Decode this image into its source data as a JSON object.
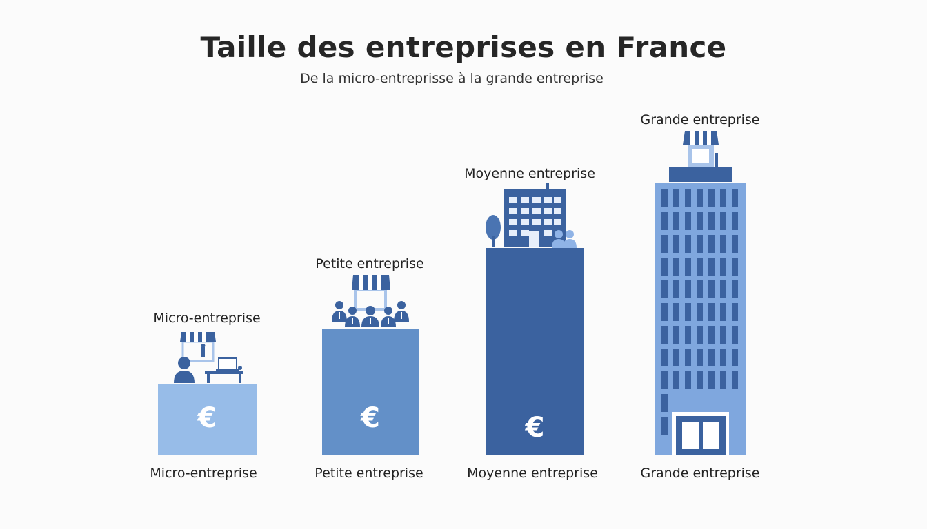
{
  "title": "Taille des entreprises en France",
  "subtitle": "De la micro-entreprisse à la grande entreprise",
  "colors": {
    "light_blue": "#97bce8",
    "mid_blue": "#6390c8",
    "dark_blue": "#3b629f",
    "tower_blue": "#7fa7de"
  },
  "categories": [
    {
      "top_label": "Micro-entreprise",
      "bottom_label": "Micro-entreprise",
      "symbol": "€",
      "icon": "shop-desk-person-icon"
    },
    {
      "top_label": "Petite entreprise",
      "bottom_label": "Petite entreprise",
      "symbol": "€",
      "icon": "shop-team-icon"
    },
    {
      "top_label": "Moyenne entreprise",
      "bottom_label": "Moyenne entreprise",
      "symbol": "€",
      "icon": "office-building-icon"
    },
    {
      "top_label": "Grande entreprise",
      "bottom_label": "Grande entreprise",
      "icon": "skyscraper-icon"
    }
  ]
}
